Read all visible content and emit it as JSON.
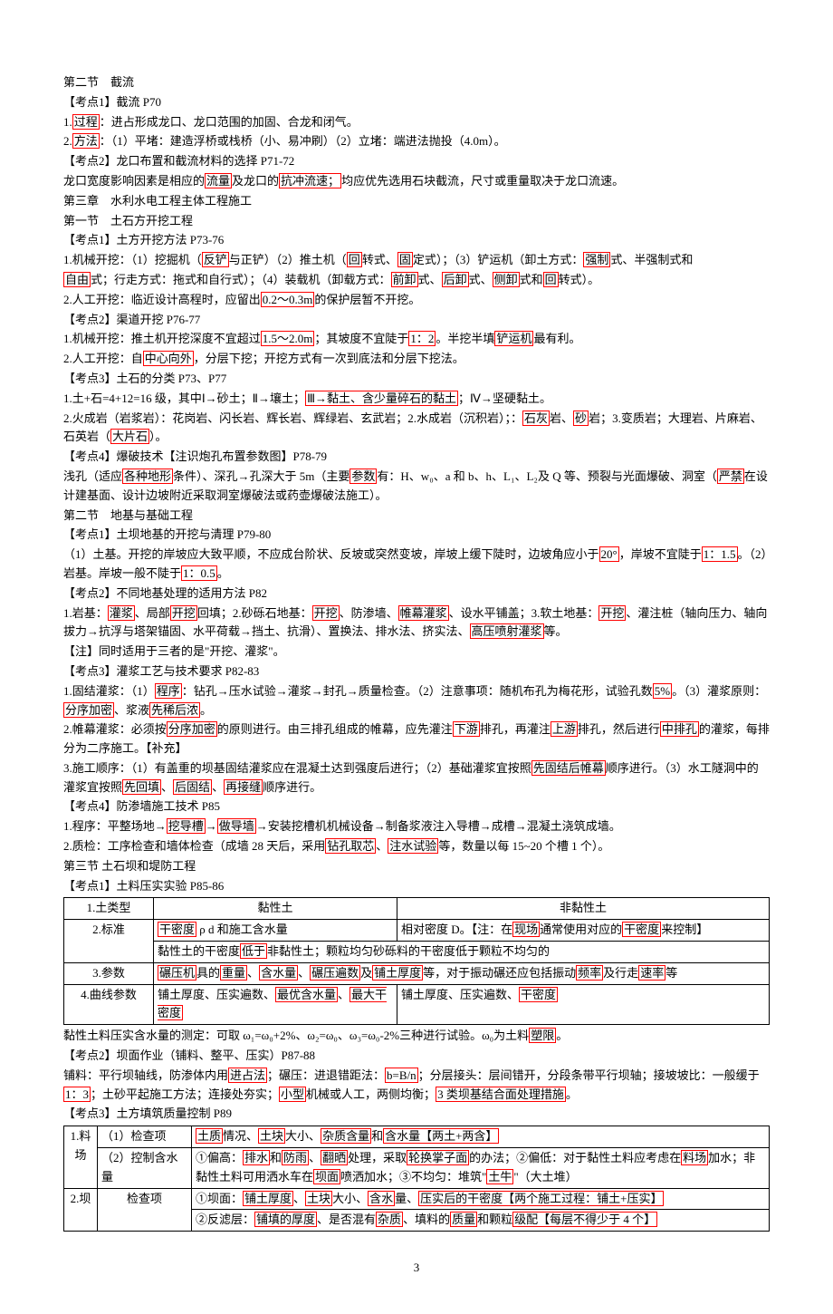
{
  "hl_color": "#ff0000",
  "font_size": 13,
  "page_number": "3",
  "lines": [
    {
      "t": "第二节　截流"
    },
    {
      "t": "【考点1】截流 P70"
    },
    {
      "pre": "1.",
      "hl": "过程",
      "post": "：进占形成龙口、龙口范围的加固、合龙和闭气。"
    },
    {
      "pre": "2.",
      "hl": "方法",
      "post": "：（1）平堵：建造浮桥或栈桥（小、易冲刷）（2）立堵：端进法抛投（4.0m）。"
    },
    {
      "t": "【考点2】龙口布置和截流材料的选择 P71-72"
    },
    {
      "segs": [
        {
          "t": "龙口宽度影响因素是相应的"
        },
        {
          "hl": "流量"
        },
        {
          "t": "及龙口的"
        },
        {
          "hl": "抗冲流速；"
        },
        {
          "t": "均应优先选用石块截流，尺寸或重量取决于龙口流速。"
        }
      ]
    },
    {
      "t": "第三章　水利水电工程主体工程施工"
    },
    {
      "t": "第一节　土石方开挖工程"
    },
    {
      "t": "【考点1】土方开挖方法 P73-76"
    },
    {
      "segs": [
        {
          "t": "1.机械开挖：（1）挖掘机（"
        },
        {
          "hl": "反铲"
        },
        {
          "t": "与正铲）（2）推土机（"
        },
        {
          "hl": "回"
        },
        {
          "t": "转式、"
        },
        {
          "hl": "固"
        },
        {
          "t": "定式）；（3）铲运机（卸土方式："
        },
        {
          "hl": "强制"
        },
        {
          "t": "式、半强制式和"
        }
      ]
    },
    {
      "segs": [
        {
          "hl": "自由"
        },
        {
          "t": "式；行走方式：拖式和自行式）；（4）装载机（卸载方式："
        },
        {
          "hl": "前卸"
        },
        {
          "t": "式、"
        },
        {
          "hl": "后卸"
        },
        {
          "t": "式、"
        },
        {
          "hl": "侧卸"
        },
        {
          "t": "式和"
        },
        {
          "hl": "回"
        },
        {
          "t": "转式）。"
        }
      ]
    },
    {
      "segs": [
        {
          "t": "2.人工开挖：临近设计高程时，应留出"
        },
        {
          "hl": "0.2～0.3m"
        },
        {
          "t": "的保护层暂不开挖。"
        }
      ]
    },
    {
      "t": "【考点2】渠道开挖 P76-77"
    },
    {
      "segs": [
        {
          "t": "1.机械开挖：推土机开挖深度不宜超过"
        },
        {
          "hl": "1.5～2.0m"
        },
        {
          "t": "；其坡度不宜陡于"
        },
        {
          "hl": "1：2"
        },
        {
          "t": "。半挖半填"
        },
        {
          "hl": "铲运机"
        },
        {
          "t": "最有利。"
        }
      ]
    },
    {
      "segs": [
        {
          "t": "2.人工开挖：自"
        },
        {
          "hl": "中心向外"
        },
        {
          "t": "，分层下挖；开挖方式有一次到底法和分层下挖法。"
        }
      ]
    },
    {
      "t": "【考点3】土石的分类 P73、P77"
    },
    {
      "segs": [
        {
          "t": "1.土+石=4+12=16 级，其中Ⅰ→砂土；Ⅱ→壤土；"
        },
        {
          "hl": "Ⅲ→黏土、含少量碎石的黏土"
        },
        {
          "t": "；Ⅳ→坚硬黏土。"
        }
      ]
    },
    {
      "segs": [
        {
          "t": "2.火成岩（岩浆岩）：花岗岩、闪长岩、辉长岩、辉绿岩、玄武岩；2.水成岩（沉积岩）；："
        },
        {
          "hl": "石灰"
        },
        {
          "t": "岩、"
        },
        {
          "hl": "砂"
        },
        {
          "t": "岩；3.变质岩；大理岩、片麻岩、石英岩（"
        },
        {
          "hl": "大片石"
        },
        {
          "t": "）。"
        }
      ]
    },
    {
      "t": "【考点4】爆破技术【注识炮孔布置参数图】P78-79"
    },
    {
      "segs": [
        {
          "t": "浅孔（适应"
        },
        {
          "hl": "各种地形"
        },
        {
          "t": "条件）、深孔→孔深大于 5m（主要"
        },
        {
          "hl": "参数"
        },
        {
          "t": "有：H、w₀、a 和 b、h、L₁、L₂及 Q 等、预裂与光面爆破、洞室（"
        },
        {
          "hl": "严禁"
        },
        {
          "t": "在设计建基面、设计边坡附近采取洞室爆破法或药壶爆破法施工）。"
        }
      ]
    },
    {
      "t": "第二节　地基与基础工程"
    },
    {
      "t": "【考点1】土坝地基的开挖与清理 P79-80"
    },
    {
      "segs": [
        {
          "t": "（1）土基。开挖的岸坡应大致平顺，不应成台阶状、反坡或突然变坡，岸坡上缓下陡时，边坡角应小于"
        },
        {
          "hl": "20°"
        },
        {
          "t": "，岸坡不宜陡于"
        },
        {
          "hl": "1：1.5"
        },
        {
          "t": "。（2）岩基。岸坡一般不陡于"
        },
        {
          "hl": "1：0.5"
        },
        {
          "t": "。"
        }
      ]
    },
    {
      "t": "【考点2】不同地基处理的适用方法 P82"
    },
    {
      "segs": [
        {
          "t": "1.岩基："
        },
        {
          "hl": "灌浆"
        },
        {
          "t": "、局部"
        },
        {
          "hl": "开挖"
        },
        {
          "t": "回填；2.砂砾石地基："
        },
        {
          "hl": "开挖"
        },
        {
          "t": "、防渗墙、"
        },
        {
          "hl": "帷幕灌浆"
        },
        {
          "t": "、设水平铺盖；3.软土地基："
        },
        {
          "hl": "开挖"
        },
        {
          "t": "、灌注桩（轴向压力、轴向拔力→抗浮与塔架锚固、水平荷载→挡土、抗滑）、置换法、排水法、挤实法、"
        },
        {
          "hl": "高压喷射灌浆"
        },
        {
          "t": "等。"
        }
      ]
    },
    {
      "t": "【注】同时适用于三者的是\"开挖、灌浆\"。"
    },
    {
      "t": "【考点3】灌浆工艺与技术要求 P82-83"
    },
    {
      "segs": [
        {
          "t": "1.固结灌浆：（1）"
        },
        {
          "hl": "程序"
        },
        {
          "t": "：钻孔→压水试验→灌浆→封孔→质量检查。（2）注意事项：随机布孔为梅花形，试验孔数"
        },
        {
          "hl": "5%"
        },
        {
          "t": "。（3）灌浆原则："
        },
        {
          "hl": "分序加密"
        },
        {
          "t": "、浆液"
        },
        {
          "hl": "先稀后浓"
        },
        {
          "t": "。"
        }
      ]
    },
    {
      "segs": [
        {
          "t": "2.帷幕灌浆：必须按"
        },
        {
          "hl": "分序加密"
        },
        {
          "t": "的原则进行。由三排孔组成的帷幕，应先灌注"
        },
        {
          "hl": "下游"
        },
        {
          "t": "排孔，再灌注"
        },
        {
          "hl": "上游"
        },
        {
          "t": "排孔，然后进行"
        },
        {
          "hl": "中排孔"
        },
        {
          "t": "的灌浆，每排分为二序施工。【补充】"
        }
      ]
    },
    {
      "segs": [
        {
          "t": "3.施工顺序：（1）有盖重的坝基固结灌浆应在混凝土达到强度后进行；（2）基础灌浆宜按照"
        },
        {
          "hl": "先固结后帷幕"
        },
        {
          "t": "顺序进行。（3）水工隧洞中的灌浆宜按照"
        },
        {
          "hl": "先回填"
        },
        {
          "t": "、"
        },
        {
          "hl": "后固结"
        },
        {
          "t": "、"
        },
        {
          "hl": "再接缝"
        },
        {
          "t": "顺序进行。"
        }
      ]
    },
    {
      "t": "【考点4】防渗墙施工技术 P85"
    },
    {
      "segs": [
        {
          "t": "1.程序：平整场地→"
        },
        {
          "hl": "挖导槽"
        },
        {
          "t": "→"
        },
        {
          "hl": "做导墙"
        },
        {
          "t": "→安装挖槽机机械设备→制备浆液注入导槽→成槽→混凝土浇筑成墙。"
        }
      ]
    },
    {
      "segs": [
        {
          "t": "2.质检：工序检查和墙体检查（成墙 28 天后，采用"
        },
        {
          "hl": "钻孔取芯"
        },
        {
          "t": "、"
        },
        {
          "hl": "注水试验"
        },
        {
          "t": "等，数量以每 15~20 个槽 1 个）。"
        }
      ]
    },
    {
      "t": "第三节 土石坝和堤防工程"
    },
    {
      "t": "【考点1】土料压实实验 P85-86"
    }
  ],
  "table1": {
    "rows": [
      [
        "1.土类型",
        "黏性土",
        "非黏性土"
      ],
      [
        "2.标准",
        [
          {
            "hl": "干密度"
          },
          {
            "t": " ρ d 和施工含水量"
          }
        ],
        [
          {
            "t": "相对密度 D。【注：在"
          },
          {
            "hl": "现场"
          },
          {
            "t": "通常使用对应的"
          },
          {
            "hl": "干密度"
          },
          {
            "t": "来控制】"
          }
        ]
      ],
      [
        "",
        [
          {
            "t": "黏性土的干密度"
          },
          {
            "hl": "低于"
          },
          {
            "t": "非黏性土；颗粒均匀砂砾料的干密度低于颗粒不均匀的"
          }
        ],
        ""
      ],
      [
        "3.参数",
        [
          {
            "hl": "碾压机"
          },
          {
            "t": "具的"
          },
          {
            "hl": "重量"
          },
          {
            "t": "、"
          },
          {
            "hl": "含水量"
          },
          {
            "t": "、"
          },
          {
            "hl": "碾压遍数"
          },
          {
            "t": "及"
          },
          {
            "hl": "铺土厚度"
          },
          {
            "t": "等，对于振动碾还应包括振动"
          },
          {
            "hl": "频率"
          },
          {
            "t": "及行走"
          },
          {
            "hl": "速率"
          },
          {
            "t": "等"
          }
        ],
        ""
      ],
      [
        "4.曲线参数",
        [
          {
            "t": "铺土厚度、压实遍数、"
          },
          {
            "hl": "最优含水量"
          },
          {
            "t": "、"
          },
          {
            "hl": "最大干密度"
          }
        ],
        [
          {
            "t": "铺土厚度、压实遍数、"
          },
          {
            "hl": "干密度"
          }
        ]
      ]
    ]
  },
  "after_t1": [
    {
      "segs": [
        {
          "t": "黏性土料压实含水量的测定：可取 ω₁=ω₀+2%、ω₂=ω₀、ω₃=ω₀-2%三种进行试验。ω₀为土料"
        },
        {
          "hl": "塑限"
        },
        {
          "t": "。"
        }
      ]
    },
    {
      "t": "【考点2】坝面作业（铺料、整平、压实）P87-88"
    },
    {
      "segs": [
        {
          "t": "铺料：平行坝轴线，防渗体内用"
        },
        {
          "hl": "进占法"
        },
        {
          "t": "；碾压：进退错距法："
        },
        {
          "hl": "b=B/n"
        },
        {
          "t": "；分层接头：层间错开，分段条带平行坝轴；接坡坡比：一般缓于"
        },
        {
          "hl": "1：3"
        },
        {
          "t": "；土砂平起施工方法；连接处夯实；"
        },
        {
          "hl": "小型"
        },
        {
          "t": "机械或人工，两侧均衡；"
        },
        {
          "hl": "3 类坝基结合面处理措施"
        },
        {
          "t": "。"
        }
      ]
    },
    {
      "t": "【考点3】土方填筑质量控制 P89"
    }
  ],
  "table2": {
    "rows": [
      [
        {
          "r": "1.料场",
          "rs": 2
        },
        "（1）检查项",
        [
          {
            "hl": "土质"
          },
          {
            "t": "情况、"
          },
          {
            "hl": "土块"
          },
          {
            "t": "大小、"
          },
          {
            "hl": "杂质含量"
          },
          {
            "t": "和"
          },
          {
            "hl": "含水量【两土+两含】"
          }
        ]
      ],
      [
        null,
        "（2）控制含水量",
        [
          {
            "t": "①偏高："
          },
          {
            "hl": "排水"
          },
          {
            "t": "和"
          },
          {
            "hl": "防雨"
          },
          {
            "t": "、"
          },
          {
            "hl": "翻晒"
          },
          {
            "t": "处理，采取"
          },
          {
            "hl": "轮换掌子面"
          },
          {
            "t": "的办法；②偏低：对于黏性土料应考虑在"
          },
          {
            "hl": "料场"
          },
          {
            "t": "加水；非黏性土料可用洒水车在"
          },
          {
            "hl": "坝面"
          },
          {
            "t": "喷洒加水；③不均匀：堆筑\""
          },
          {
            "hl": "土牛"
          },
          {
            "t": "\"（大土堆）"
          }
        ]
      ],
      [
        {
          "r": "2.坝",
          "rs": 2
        },
        {
          "r": "检查项",
          "rs": 2
        },
        [
          {
            "t": "①坝面："
          },
          {
            "hl": "铺土厚度"
          },
          {
            "t": "、"
          },
          {
            "hl": "土块"
          },
          {
            "t": "大小、"
          },
          {
            "hl": "含水"
          },
          {
            "t": "量、"
          },
          {
            "hl": "压实后的干密度【两个施工过程：铺土+压实】"
          }
        ]
      ],
      [
        null,
        null,
        [
          {
            "t": "②反滤层："
          },
          {
            "hl": "铺填的厚度"
          },
          {
            "t": "、是否混有"
          },
          {
            "hl": "杂质"
          },
          {
            "t": "、填料的"
          },
          {
            "hl": "质量"
          },
          {
            "t": "和颗粒"
          },
          {
            "hl": "级配【每层不得少于 4 个】"
          }
        ]
      ]
    ]
  }
}
